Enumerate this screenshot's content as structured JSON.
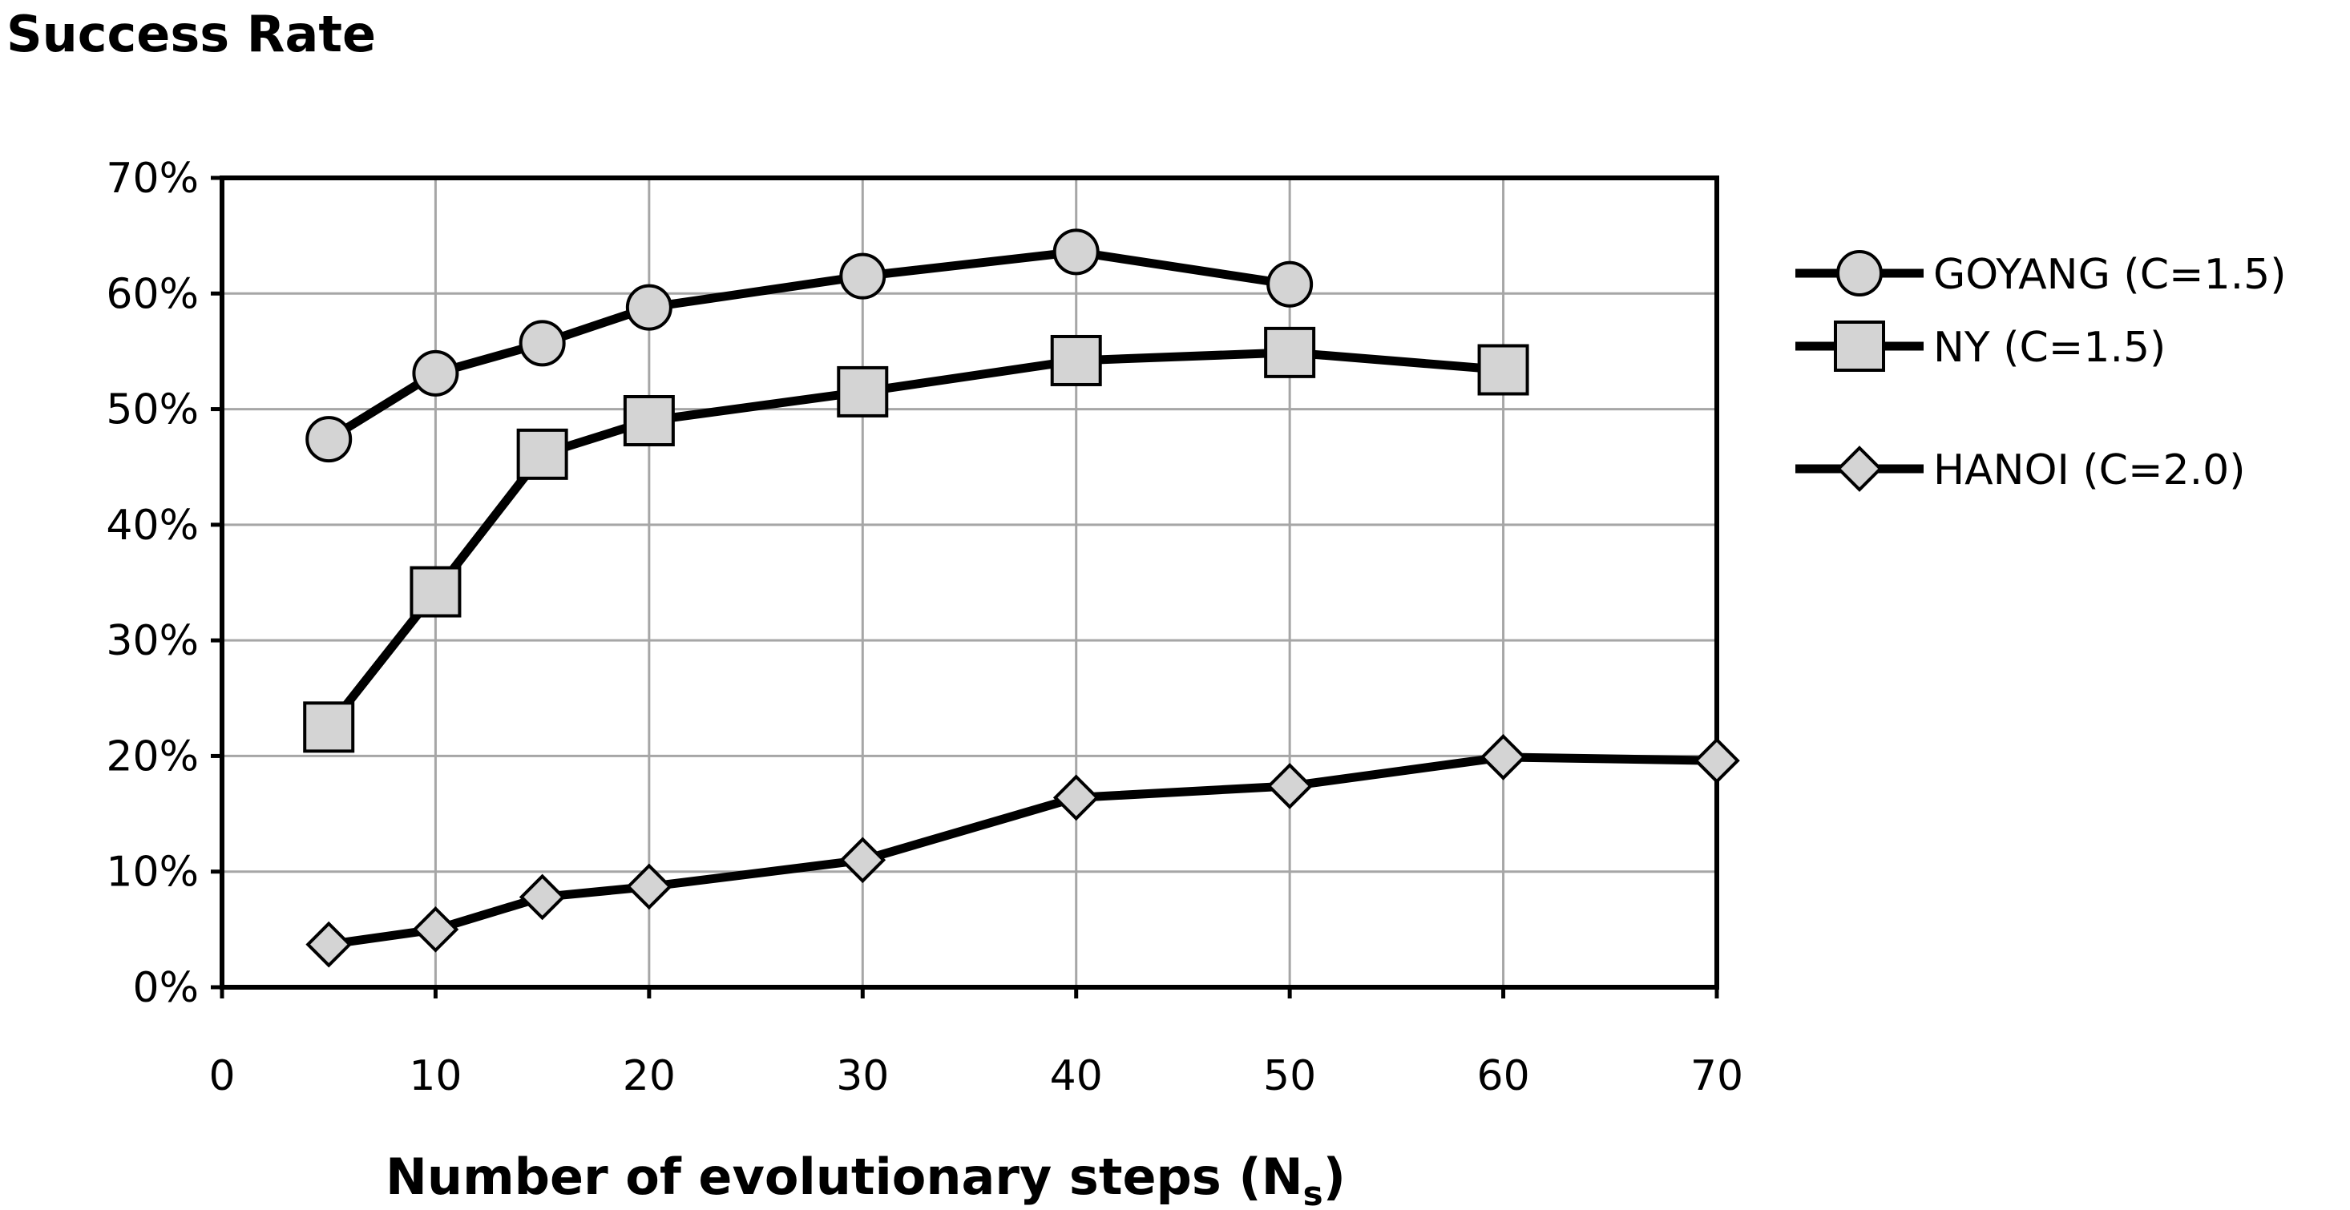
{
  "chart_data": {
    "type": "line",
    "ylabel": "Success Rate",
    "xlabel": "Number of evolutionary steps (N",
    "xlabel_sub": "s",
    "xlabel_close": ")",
    "xlim": [
      0,
      70
    ],
    "ylim": [
      0,
      70
    ],
    "x_ticks": [
      0,
      10,
      20,
      30,
      40,
      50,
      60,
      70
    ],
    "x_tick_labels": [
      "0",
      "10",
      "20",
      "30",
      "40",
      "50",
      "60",
      "70"
    ],
    "y_ticks": [
      0,
      10,
      20,
      30,
      40,
      50,
      60,
      70
    ],
    "y_tick_labels": [
      "0%",
      "10%",
      "20%",
      "30%",
      "40%",
      "50%",
      "60%",
      "70%"
    ],
    "grid": true,
    "legend_position": "right",
    "series": [
      {
        "name": "GOYANG (C=1.5)",
        "marker": "circle",
        "x": [
          5,
          10,
          15,
          20,
          30,
          40,
          50
        ],
        "y": [
          47.4,
          53.1,
          55.7,
          58.8,
          61.5,
          63.6,
          60.8
        ]
      },
      {
        "name": "NY (C=1.5)",
        "marker": "square",
        "x": [
          5,
          10,
          15,
          20,
          30,
          40,
          50,
          60
        ],
        "y": [
          22.5,
          34.2,
          46.1,
          49.0,
          51.5,
          54.2,
          54.9,
          53.4
        ]
      },
      {
        "name": "HANOI (C=2.0)",
        "marker": "diamond",
        "x": [
          5,
          10,
          15,
          20,
          30,
          40,
          50,
          60,
          70
        ],
        "y": [
          3.7,
          5.0,
          7.8,
          8.7,
          11.0,
          16.4,
          17.4,
          19.9,
          19.6
        ]
      }
    ],
    "colors": {
      "line": "#000000",
      "marker_fill": "#d4d4d4",
      "grid": "#a6a6a6"
    }
  }
}
